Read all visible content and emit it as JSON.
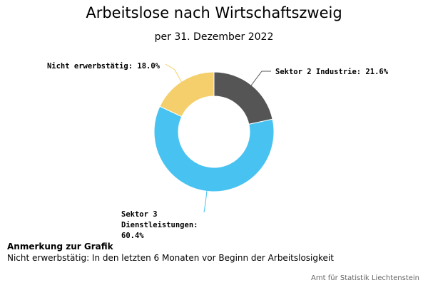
{
  "chart_data": {
    "type": "pie",
    "title": "Arbeitslose nach Wirtschaftszweig",
    "subtitle": "per 31. Dezember 2022",
    "slices": [
      {
        "label": "Sektor 2 Industrie",
        "value": 21.6,
        "display": "Sektor 2 Industrie: 21.6%",
        "color": "#555555"
      },
      {
        "label": "Sektor 3 Dienstleistungen",
        "value": 60.4,
        "display_lines": [
          "Sektor 3",
          "Dienstleistungen:",
          "60.4%"
        ],
        "color": "#47c2f1"
      },
      {
        "label": "Nicht erwerbstätig",
        "value": 18.0,
        "display": "Nicht erwerbstätig: 18.0%",
        "color": "#f4cf6b"
      }
    ],
    "donut": true,
    "unit": "%"
  },
  "note": {
    "heading": "Anmerkung zur Grafik",
    "text": "Nicht erwerbstätig: In den letzten 6 Monaten vor Beginn der Arbeitslosigkeit"
  },
  "credits": "Amt für Statistik Liechtenstein"
}
